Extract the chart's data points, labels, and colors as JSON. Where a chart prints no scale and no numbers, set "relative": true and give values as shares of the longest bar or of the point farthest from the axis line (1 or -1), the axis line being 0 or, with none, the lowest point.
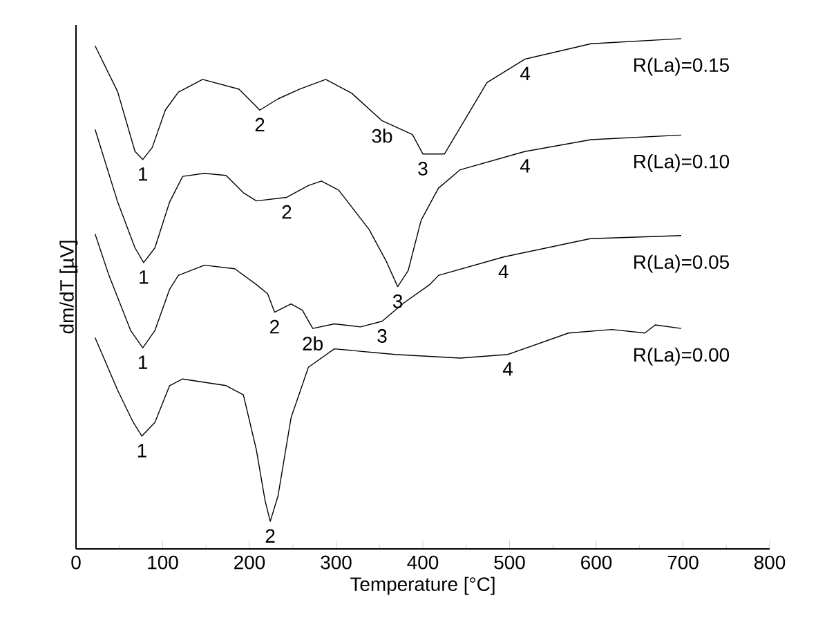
{
  "chart_data": {
    "type": "line",
    "relative": true,
    "xlabel": "Temperature [°C]",
    "ylabel": "dm/dT [µV]",
    "xlim": [
      0,
      800
    ],
    "xticks": [
      0,
      100,
      200,
      300,
      400,
      500,
      600,
      700,
      800
    ],
    "series": [
      {
        "name": "R(La)=0.15",
        "color": "#000000",
        "x": [
          22,
          48,
          68,
          77,
          88,
          103,
          118,
          146,
          188,
          212,
          233,
          258,
          288,
          318,
          353,
          388,
          400,
          425,
          474,
          518,
          594,
          698
        ],
        "values": [
          0.986,
          0.896,
          0.779,
          0.763,
          0.787,
          0.86,
          0.895,
          0.92,
          0.901,
          0.86,
          0.882,
          0.901,
          0.92,
          0.893,
          0.839,
          0.812,
          0.774,
          0.774,
          0.914,
          0.96,
          0.99,
          1.0
        ]
      },
      {
        "name": "R(La)=0.10",
        "color": "#000000",
        "x": [
          22,
          48,
          68,
          78,
          91,
          108,
          123,
          148,
          173,
          193,
          208,
          243,
          268,
          283,
          303,
          338,
          358,
          371,
          383,
          398,
          418,
          443,
          518,
          594,
          698
        ],
        "values": [
          0.822,
          0.68,
          0.59,
          0.561,
          0.59,
          0.68,
          0.73,
          0.736,
          0.732,
          0.698,
          0.682,
          0.689,
          0.712,
          0.721,
          0.703,
          0.626,
          0.563,
          0.514,
          0.545,
          0.644,
          0.707,
          0.743,
          0.779,
          0.802,
          0.811
        ]
      },
      {
        "name": "R(La)=0.05",
        "color": "#000000",
        "x": [
          22,
          38,
          63,
          77,
          91,
          108,
          118,
          148,
          183,
          208,
          221,
          229,
          248,
          261,
          273,
          298,
          328,
          353,
          378,
          408,
          418,
          493,
          593,
          698
        ],
        "values": [
          0.617,
          0.536,
          0.428,
          0.394,
          0.428,
          0.509,
          0.536,
          0.556,
          0.549,
          0.518,
          0.5,
          0.464,
          0.48,
          0.468,
          0.432,
          0.441,
          0.435,
          0.446,
          0.482,
          0.518,
          0.536,
          0.572,
          0.608,
          0.614
        ]
      },
      {
        "name": "R(La)=0.00",
        "color": "#000000",
        "x": [
          22,
          48,
          66,
          76,
          91,
          108,
          123,
          173,
          193,
          208,
          218,
          224,
          233,
          248,
          268,
          298,
          368,
          443,
          498,
          568,
          618,
          656,
          668,
          698
        ],
        "values": [
          0.414,
          0.311,
          0.248,
          0.221,
          0.248,
          0.32,
          0.333,
          0.32,
          0.302,
          0.194,
          0.095,
          0.054,
          0.104,
          0.257,
          0.356,
          0.392,
          0.381,
          0.374,
          0.381,
          0.423,
          0.43,
          0.423,
          0.439,
          0.432
        ]
      }
    ],
    "annotations": [
      {
        "text": "1",
        "x": 77,
        "y": 0.763
      },
      {
        "text": "2",
        "x": 212,
        "y": 0.86
      },
      {
        "text": "3b",
        "x": 353,
        "y": 0.839
      },
      {
        "text": "3",
        "x": 400,
        "y": 0.774
      },
      {
        "text": "4",
        "x": 518,
        "y": 0.96
      },
      {
        "text": "1",
        "x": 78,
        "y": 0.561
      },
      {
        "text": "2",
        "x": 243,
        "y": 0.689
      },
      {
        "text": "3",
        "x": 371,
        "y": 0.514
      },
      {
        "text": "4",
        "x": 518,
        "y": 0.779
      },
      {
        "text": "1",
        "x": 77,
        "y": 0.394
      },
      {
        "text": "2",
        "x": 229,
        "y": 0.464
      },
      {
        "text": "2b",
        "x": 273,
        "y": 0.432
      },
      {
        "text": "3",
        "x": 353,
        "y": 0.446
      },
      {
        "text": "4",
        "x": 493,
        "y": 0.572
      },
      {
        "text": "1",
        "x": 76,
        "y": 0.221
      },
      {
        "text": "2",
        "x": 224,
        "y": 0.054
      },
      {
        "text": "4",
        "x": 498,
        "y": 0.381
      }
    ]
  }
}
